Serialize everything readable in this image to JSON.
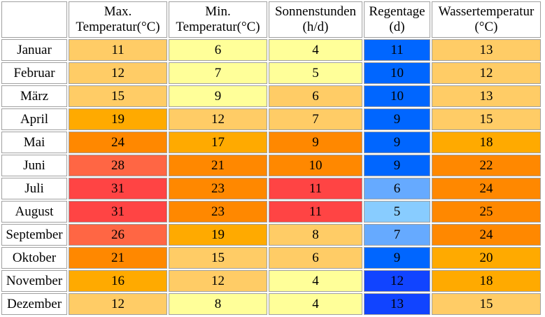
{
  "headers": [
    "",
    "Max. Temperatur(°C)",
    "Min. Temperatur(°C)",
    "Sonnenstunden (h/d)",
    "Regentage (d)",
    "Wassertemperatur (°C)"
  ],
  "header_lines": [
    [
      "",
      ""
    ],
    [
      "Max.",
      "Temperatur(°C)"
    ],
    [
      "Min.",
      "Temperatur(°C)"
    ],
    [
      "Sonnenstunden",
      "(h/d)"
    ],
    [
      "Regentage",
      "(d)"
    ],
    [
      "Wassertemperatur",
      "(°C)"
    ]
  ],
  "rows": [
    {
      "month": "Januar",
      "values": [
        "11",
        "6",
        "4",
        "11",
        "13"
      ],
      "colors": [
        "#ffcc66",
        "#ffff99",
        "#ffff99",
        "#0066ff",
        "#ffcc66"
      ]
    },
    {
      "month": "Februar",
      "values": [
        "12",
        "7",
        "5",
        "10",
        "12"
      ],
      "colors": [
        "#ffcc66",
        "#ffff99",
        "#ffff99",
        "#0066ff",
        "#ffcc66"
      ]
    },
    {
      "month": "März",
      "values": [
        "15",
        "9",
        "6",
        "10",
        "13"
      ],
      "colors": [
        "#ffcc66",
        "#ffff99",
        "#ffcc66",
        "#0066ff",
        "#ffcc66"
      ]
    },
    {
      "month": "April",
      "values": [
        "19",
        "12",
        "7",
        "9",
        "15"
      ],
      "colors": [
        "#ffaa00",
        "#ffcc66",
        "#ffcc66",
        "#0066ff",
        "#ffcc66"
      ]
    },
    {
      "month": "Mai",
      "values": [
        "24",
        "17",
        "9",
        "9",
        "18"
      ],
      "colors": [
        "#ff8800",
        "#ffaa00",
        "#ff8800",
        "#0066ff",
        "#ffaa00"
      ]
    },
    {
      "month": "Juni",
      "values": [
        "28",
        "21",
        "10",
        "9",
        "22"
      ],
      "colors": [
        "#ff6644",
        "#ff8800",
        "#ff8800",
        "#0066ff",
        "#ff8800"
      ]
    },
    {
      "month": "Juli",
      "values": [
        "31",
        "23",
        "11",
        "6",
        "24"
      ],
      "colors": [
        "#ff4444",
        "#ff8800",
        "#ff4444",
        "#66aaff",
        "#ff8800"
      ]
    },
    {
      "month": "August",
      "values": [
        "31",
        "23",
        "11",
        "5",
        "25"
      ],
      "colors": [
        "#ff4444",
        "#ff8800",
        "#ff4444",
        "#88ccff",
        "#ff8800"
      ]
    },
    {
      "month": "September",
      "values": [
        "26",
        "19",
        "8",
        "7",
        "24"
      ],
      "colors": [
        "#ff6644",
        "#ffaa00",
        "#ffcc66",
        "#66aaff",
        "#ff8800"
      ]
    },
    {
      "month": "Oktober",
      "values": [
        "21",
        "15",
        "6",
        "9",
        "20"
      ],
      "colors": [
        "#ff8800",
        "#ffcc66",
        "#ffcc66",
        "#0066ff",
        "#ffaa00"
      ]
    },
    {
      "month": "November",
      "values": [
        "16",
        "12",
        "4",
        "12",
        "18"
      ],
      "colors": [
        "#ffaa00",
        "#ffcc66",
        "#ffff99",
        "#1144ff",
        "#ffaa00"
      ]
    },
    {
      "month": "Dezember",
      "values": [
        "12",
        "8",
        "4",
        "13",
        "15"
      ],
      "colors": [
        "#ffcc66",
        "#ffff99",
        "#ffff99",
        "#1144ff",
        "#ffcc66"
      ]
    }
  ]
}
